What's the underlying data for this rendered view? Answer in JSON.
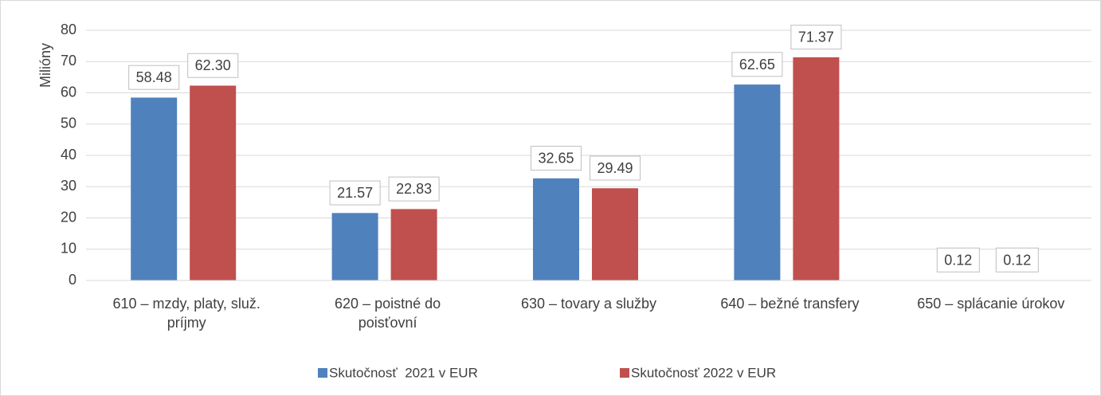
{
  "chart_data": {
    "type": "bar",
    "y_label": "Milióny",
    "categories": [
      "610 – mzdy, platy, služ. príjmy",
      "620 – poistné do poisťovní",
      "630 – tovary a služby",
      "640 – bežné transfery",
      "650 – splácanie úrokov"
    ],
    "series": [
      {
        "name": "Skutočnosť  2021 v EUR",
        "color": "#4f81bd",
        "values": [
          58.48,
          21.57,
          32.65,
          62.65,
          0.12
        ],
        "value_labels": [
          "58.48",
          "21.57",
          "32.65",
          "62.65",
          "0.12"
        ]
      },
      {
        "name": "Skutočnosť 2022 v EUR",
        "color": "#c0504d",
        "values": [
          62.3,
          22.83,
          29.49,
          71.37,
          0.12
        ],
        "value_labels": [
          "62.30",
          "22.83",
          "29.49",
          "71.37",
          "0.12"
        ]
      }
    ],
    "ylim": [
      0,
      80
    ],
    "yticks": [
      0,
      10,
      20,
      30,
      40,
      50,
      60,
      70,
      80
    ],
    "grid": true,
    "legend": "bottom"
  }
}
